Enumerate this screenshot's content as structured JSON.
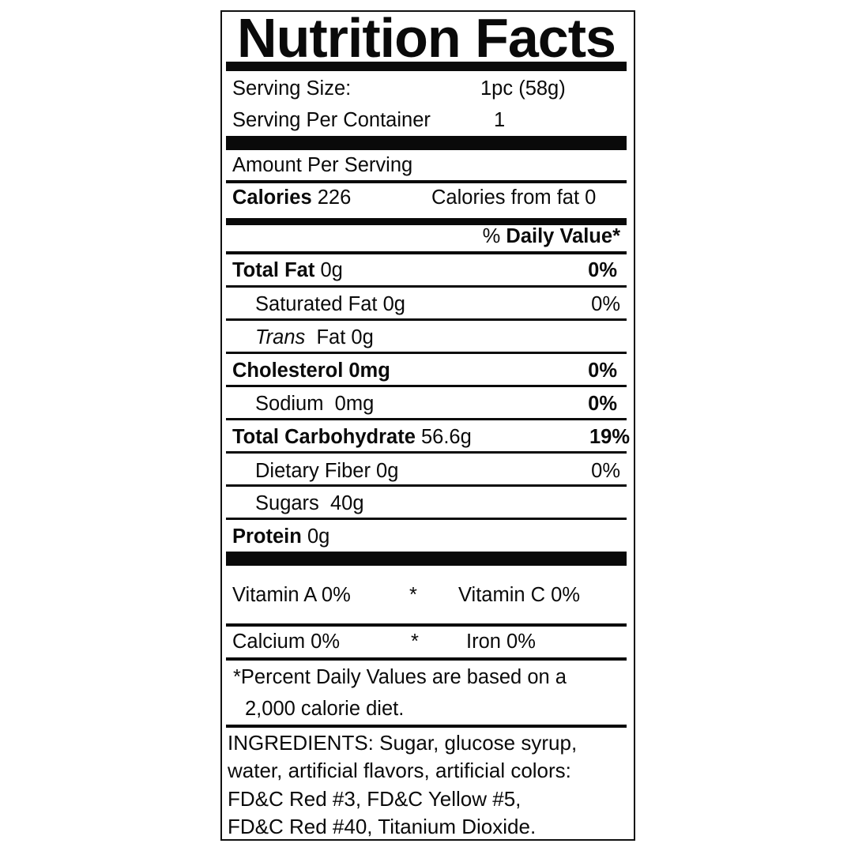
{
  "title": "Nutrition Facts",
  "serving": {
    "size_label": "Serving Size:",
    "size_value": "1pc  (58g)",
    "per_container_label": "Serving Per Container",
    "per_container_value": "1"
  },
  "amount_per_serving": "Amount Per Serving",
  "calories": {
    "label": "Calories",
    "value": "226",
    "from_fat": "Calories from fat 0"
  },
  "daily_value_header": {
    "pct": "%",
    "label": "Daily Value*"
  },
  "nutrients": [
    {
      "name": "Total Fat",
      "amount": "0g",
      "dv": "0%"
    },
    {
      "name": "Saturated Fat",
      "amount": "0g",
      "dv": "0%"
    },
    {
      "name": "Trans",
      "amount": "Fat 0g",
      "dv": ""
    },
    {
      "name": "Cholesterol",
      "amount": "0mg",
      "dv": "0%"
    },
    {
      "name": "Sodium",
      "amount": "0mg",
      "dv": "0%"
    },
    {
      "name": "Total Carbohydrate",
      "amount": "56.6g",
      "dv": "19%"
    },
    {
      "name": "Dietary Fiber",
      "amount": "0g",
      "dv": "0%"
    },
    {
      "name": "Sugars",
      "amount": "40g",
      "dv": ""
    },
    {
      "name": "Protein",
      "amount": "0g",
      "dv": ""
    }
  ],
  "vitamins": {
    "vitamin_a": "Vitamin  A 0%",
    "vitamin_c": "Vitamin C 0%",
    "calcium": "Calcium   0%",
    "iron": "Iron 0%",
    "separator": "*"
  },
  "footnote": {
    "line1": "*Percent Daily Values are based on a",
    "line2": "2,000 calorie diet."
  },
  "ingredients": [
    "INGREDIENTS: Sugar, glucose syrup,",
    "water, artificial flavors, artificial colors:",
    "FD&C Red #3, FD&C Yellow #5,",
    "FD&C Red #40, Titanium Dioxide."
  ]
}
